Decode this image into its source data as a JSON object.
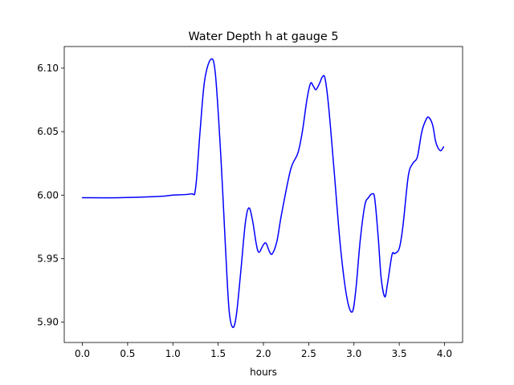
{
  "chart_data": {
    "type": "line",
    "title": "Water Depth h at gauge 5",
    "xlabel": "hours",
    "ylabel": "",
    "xlim": [
      -0.2,
      4.2
    ],
    "ylim": [
      5.884,
      6.117
    ],
    "x_ticks": [
      0.0,
      0.5,
      1.0,
      1.5,
      2.0,
      2.5,
      3.0,
      3.5,
      4.0
    ],
    "x_tick_labels": [
      "0.0",
      "0.5",
      "1.0",
      "1.5",
      "2.0",
      "2.5",
      "3.0",
      "3.5",
      "4.0"
    ],
    "y_ticks": [
      5.9,
      5.95,
      6.0,
      6.05,
      6.1
    ],
    "y_tick_labels": [
      "5.90",
      "5.95",
      "6.00",
      "6.05",
      "6.10"
    ],
    "grid": false,
    "legend": "none",
    "series": [
      {
        "color": "#0000ff",
        "x": [
          0.0,
          0.4,
          0.85,
          1.0,
          1.2,
          1.25,
          1.3,
          1.35,
          1.42,
          1.47,
          1.53,
          1.58,
          1.62,
          1.66,
          1.7,
          1.75,
          1.8,
          1.84,
          1.88,
          1.92,
          1.95,
          2.0,
          2.03,
          2.07,
          2.1,
          2.15,
          2.2,
          2.3,
          2.38,
          2.43,
          2.48,
          2.52,
          2.55,
          2.58,
          2.62,
          2.65,
          2.68,
          2.72,
          2.78,
          2.85,
          2.92,
          2.98,
          3.02,
          3.07,
          3.12,
          3.16,
          3.2,
          3.23,
          3.27,
          3.3,
          3.34,
          3.37,
          3.42,
          3.45,
          3.5,
          3.54,
          3.6,
          3.65,
          3.7,
          3.75,
          3.8,
          3.83,
          3.87,
          3.9,
          3.93,
          3.96,
          3.99
        ],
        "y": [
          5.998,
          5.998,
          5.999,
          6.0,
          6.001,
          6.005,
          6.05,
          6.09,
          6.107,
          6.095,
          6.03,
          5.96,
          5.91,
          5.896,
          5.905,
          5.94,
          5.978,
          5.99,
          5.98,
          5.962,
          5.955,
          5.961,
          5.962,
          5.955,
          5.954,
          5.964,
          5.985,
          6.02,
          6.033,
          6.05,
          6.075,
          6.088,
          6.086,
          6.083,
          6.088,
          6.093,
          6.092,
          6.07,
          6.02,
          5.96,
          5.92,
          5.908,
          5.925,
          5.965,
          5.992,
          5.998,
          6.001,
          5.997,
          5.965,
          5.935,
          5.92,
          5.93,
          5.953,
          5.954,
          5.958,
          5.975,
          6.015,
          6.025,
          6.03,
          6.05,
          6.06,
          6.061,
          6.055,
          6.043,
          6.037,
          6.035,
          6.038
        ]
      }
    ]
  }
}
